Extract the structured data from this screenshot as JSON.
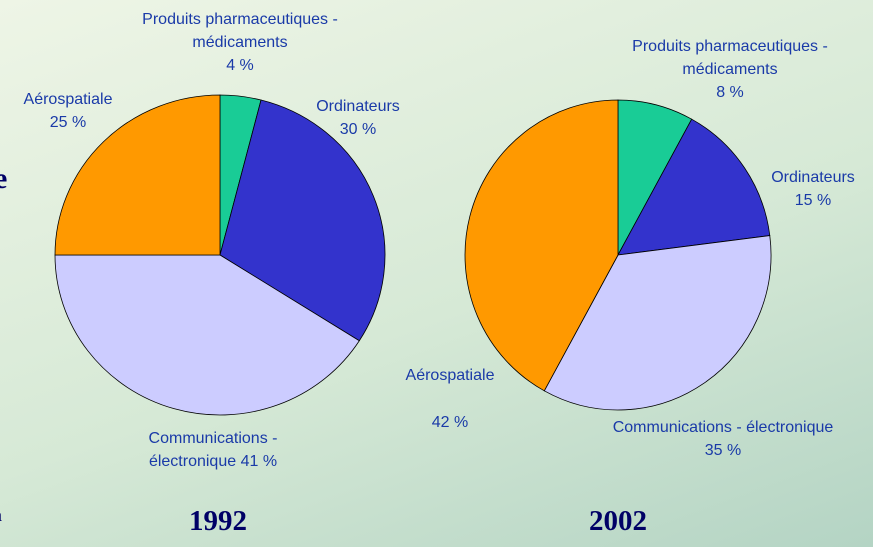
{
  "chart_data": [
    {
      "type": "pie",
      "title": "1992",
      "categories": [
        "Produits pharmaceutiques - médicaments",
        "Ordinateurs",
        "Communications - électronique",
        "Aérospatiale"
      ],
      "values": [
        4,
        30,
        41,
        25
      ],
      "value_labels": [
        "4 %",
        "30 %",
        "41 %",
        "25 %"
      ],
      "colors": [
        "#19cc96",
        "#3333cc",
        "#ccccff",
        "#ff9900"
      ]
    },
    {
      "type": "pie",
      "title": "2002",
      "categories": [
        "Produits pharmaceutiques - médicaments",
        "Ordinateurs",
        "Communications - électronique",
        "Aérospatiale"
      ],
      "values": [
        8,
        15,
        35,
        42
      ],
      "value_labels": [
        "8 %",
        "15 %",
        "35 %",
        "42 %"
      ],
      "colors": [
        "#19cc96",
        "#3333cc",
        "#ccccff",
        "#ff9900"
      ]
    }
  ],
  "side_text": [
    "e",
    "a"
  ]
}
